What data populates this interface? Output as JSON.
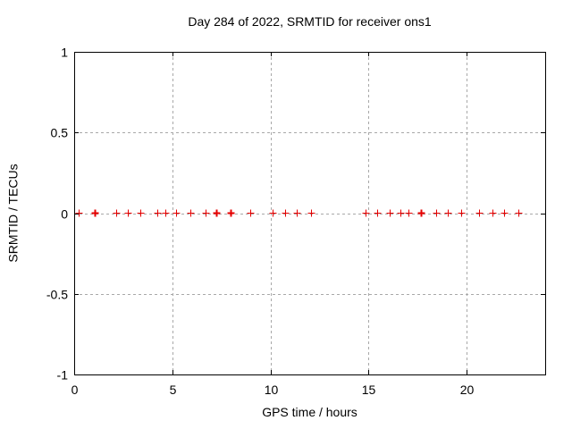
{
  "chart_data": {
    "type": "scatter",
    "title": "Day 284 of 2022, SRMTID for receiver ons1",
    "xlabel": "GPS time / hours",
    "ylabel": "SRMTID / TECUs",
    "xlim": [
      0,
      24
    ],
    "ylim": [
      -1,
      1
    ],
    "x_ticks": [
      0,
      5,
      10,
      15,
      20
    ],
    "y_ticks": [
      -1,
      -0.5,
      0,
      0.5,
      1
    ],
    "grid": true,
    "legend": "none",
    "marker": "plus",
    "colors": {
      "marker": "#e60000",
      "grid": "#a8a8a8",
      "border": "#000000",
      "text": "#000000",
      "background": "#ffffff"
    },
    "series": [
      {
        "name": "SRMTID",
        "points": [
          {
            "x": 0.23,
            "y": 0,
            "w": 1
          },
          {
            "x": 1.07,
            "y": 0,
            "w": 2
          },
          {
            "x": 2.14,
            "y": 0,
            "w": 1
          },
          {
            "x": 2.73,
            "y": 0,
            "w": 1
          },
          {
            "x": 3.36,
            "y": 0,
            "w": 1
          },
          {
            "x": 4.23,
            "y": 0,
            "w": 1
          },
          {
            "x": 4.64,
            "y": 0,
            "w": 1
          },
          {
            "x": 5.18,
            "y": 0,
            "w": 1
          },
          {
            "x": 5.91,
            "y": 0,
            "w": 1
          },
          {
            "x": 6.68,
            "y": 0,
            "w": 1
          },
          {
            "x": 7.23,
            "y": 0,
            "w": 2
          },
          {
            "x": 7.95,
            "y": 0,
            "w": 2
          },
          {
            "x": 8.95,
            "y": 0,
            "w": 1
          },
          {
            "x": 10.09,
            "y": 0,
            "w": 1
          },
          {
            "x": 10.77,
            "y": 0,
            "w": 1
          },
          {
            "x": 11.36,
            "y": 0,
            "w": 1
          },
          {
            "x": 12.05,
            "y": 0,
            "w": 1
          },
          {
            "x": 14.86,
            "y": 0,
            "w": 1
          },
          {
            "x": 15.45,
            "y": 0,
            "w": 1
          },
          {
            "x": 16.09,
            "y": 0,
            "w": 1
          },
          {
            "x": 16.64,
            "y": 0,
            "w": 1
          },
          {
            "x": 17.05,
            "y": 0,
            "w": 1
          },
          {
            "x": 17.68,
            "y": 0,
            "w": 2
          },
          {
            "x": 18.43,
            "y": 0,
            "w": 1
          },
          {
            "x": 19.05,
            "y": 0,
            "w": 1
          },
          {
            "x": 19.7,
            "y": 0,
            "w": 1
          },
          {
            "x": 20.65,
            "y": 0,
            "w": 1
          },
          {
            "x": 21.32,
            "y": 0,
            "w": 1
          },
          {
            "x": 21.91,
            "y": 0,
            "w": 1
          },
          {
            "x": 22.64,
            "y": 0,
            "w": 1
          }
        ]
      }
    ]
  }
}
